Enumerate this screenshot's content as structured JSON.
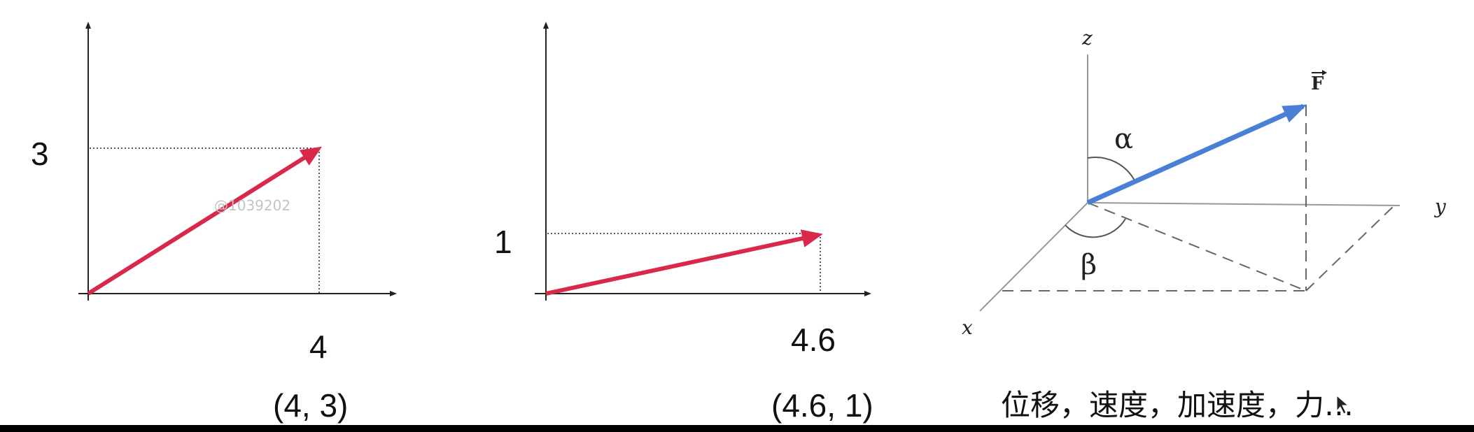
{
  "panel1": {
    "y_value": "3",
    "x_value": "4",
    "coord": "(4, 3)",
    "watermark": "@1039202"
  },
  "panel2": {
    "y_value": "1",
    "x_value": "4.6",
    "coord": "(4.6, 1)"
  },
  "panel3": {
    "axis_x": "x",
    "axis_y": "y",
    "axis_z": "z",
    "alpha": "α",
    "beta": "β",
    "force": "F"
  },
  "caption": "位移，速度，加速度，力…",
  "colors": {
    "vector_red": "#d8294a",
    "vector_blue": "#4a7fd6",
    "bottom_bar": "#000000"
  }
}
